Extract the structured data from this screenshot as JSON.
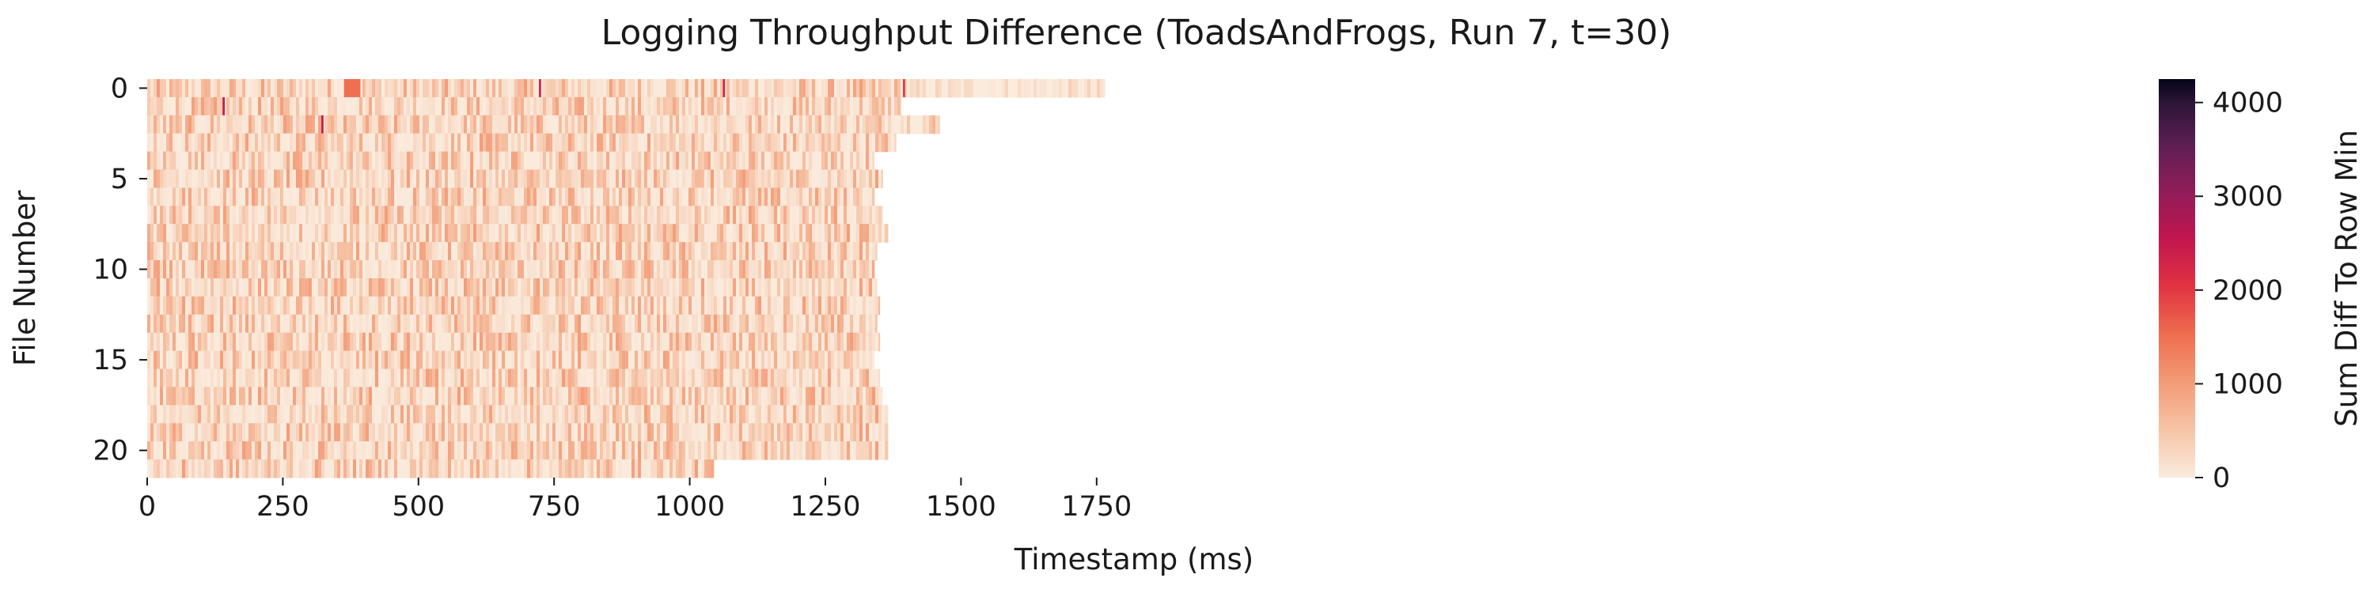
{
  "chart_data": {
    "type": "heatmap",
    "title": "Logging Throughput Difference (ToadsAndFrogs, Run 7, t=30)",
    "xlabel": "Timestamp (ms)",
    "ylabel": "File Number",
    "colorbar_label": "Sum Diff To Row Min",
    "x_ticks": [
      0,
      250,
      500,
      750,
      1000,
      1250,
      1500,
      1750
    ],
    "y_ticks": [
      0,
      5,
      10,
      15,
      20
    ],
    "colorbar_ticks": [
      0,
      1000,
      2000,
      3000,
      4000
    ],
    "xlim": [
      0,
      1820
    ],
    "rows": 22,
    "value_range": [
      0,
      4250
    ],
    "colormap": "rocket_r",
    "row_end_ms": [
      1765,
      1390,
      1460,
      1380,
      1340,
      1355,
      1340,
      1355,
      1365,
      1345,
      1340,
      1345,
      1350,
      1345,
      1350,
      1340,
      1350,
      1355,
      1365,
      1365,
      1365,
      1045
    ],
    "typical_range": [
      0,
      1000
    ],
    "highlights": [
      {
        "row": 0,
        "x_start_ms": 363,
        "x_end_ms": 393,
        "value": 1500
      },
      {
        "row": 0,
        "x_start_ms": 722,
        "x_end_ms": 726,
        "value": 2300
      },
      {
        "row": 0,
        "x_start_ms": 1061,
        "x_end_ms": 1065,
        "value": 2300
      },
      {
        "row": 0,
        "x_start_ms": 1393,
        "x_end_ms": 1397,
        "value": 2000
      },
      {
        "row": 1,
        "x_start_ms": 139,
        "x_end_ms": 143,
        "value": 2500
      },
      {
        "row": 2,
        "x_start_ms": 321,
        "x_end_ms": 325,
        "value": 2500
      }
    ]
  }
}
